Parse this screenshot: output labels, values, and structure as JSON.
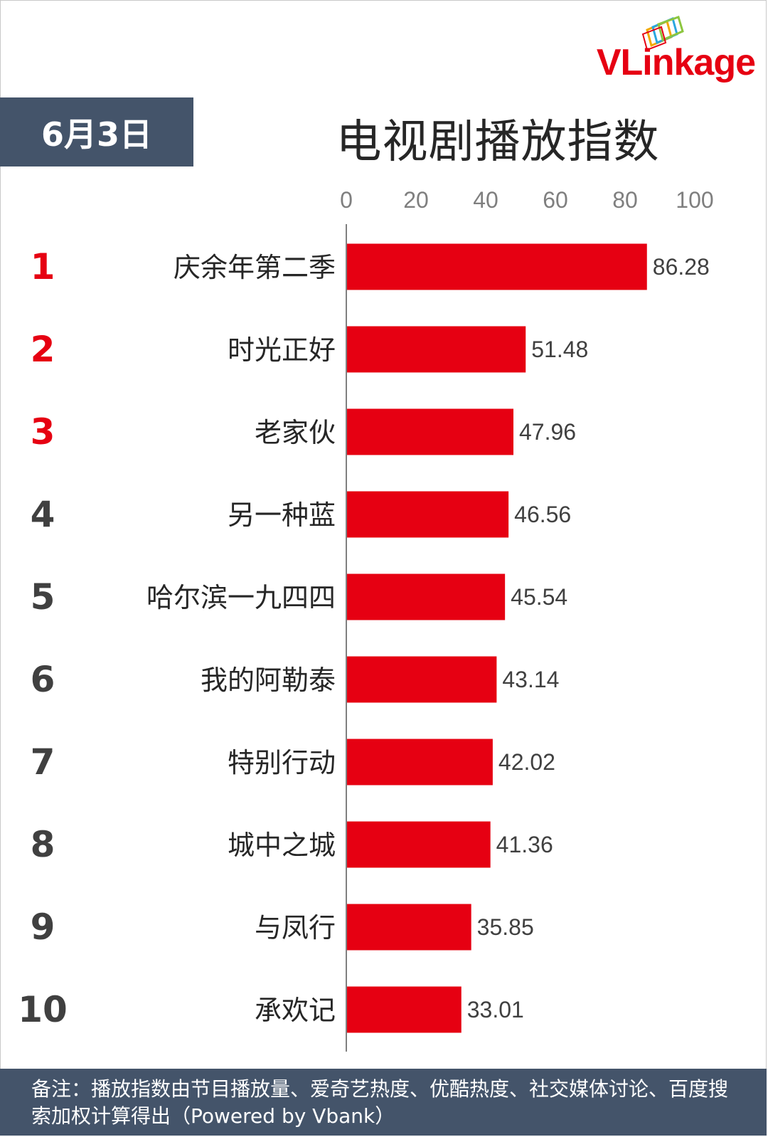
{
  "brand": {
    "logo_text": "VLinkage"
  },
  "date_label": "6月3日",
  "title": "电视剧播放指数",
  "footer_note": "备注：播放指数由节目播放量、爱奇艺热度、优酷热度、社交媒体讨论、百度搜索加权计算得出（Powered by Vbank）",
  "colors": {
    "bar": "#e60012",
    "rank_top": "#e60012",
    "rank_other": "#404040",
    "header_bg": "#44546a"
  },
  "chart_data": {
    "type": "bar",
    "orientation": "horizontal",
    "title": "电视剧播放指数",
    "xlim": [
      0,
      100
    ],
    "x_ticks": [
      0,
      20,
      40,
      60,
      80,
      100
    ],
    "grid": false,
    "ranks": [
      "1",
      "2",
      "3",
      "4",
      "5",
      "6",
      "7",
      "8",
      "9",
      "10"
    ],
    "categories": [
      "庆余年第二季",
      "时光正好",
      "老家伙",
      "另一种蓝",
      "哈尔滨一九四四",
      "我的阿勒泰",
      "特别行动",
      "城中之城",
      "与凤行",
      "承欢记"
    ],
    "values": [
      86.28,
      51.48,
      47.96,
      46.56,
      45.54,
      43.14,
      42.02,
      41.36,
      35.85,
      33.01
    ],
    "value_labels": [
      "86.28",
      "51.48",
      "47.96",
      "46.56",
      "45.54",
      "43.14",
      "42.02",
      "41.36",
      "35.85",
      "33.01"
    ]
  }
}
